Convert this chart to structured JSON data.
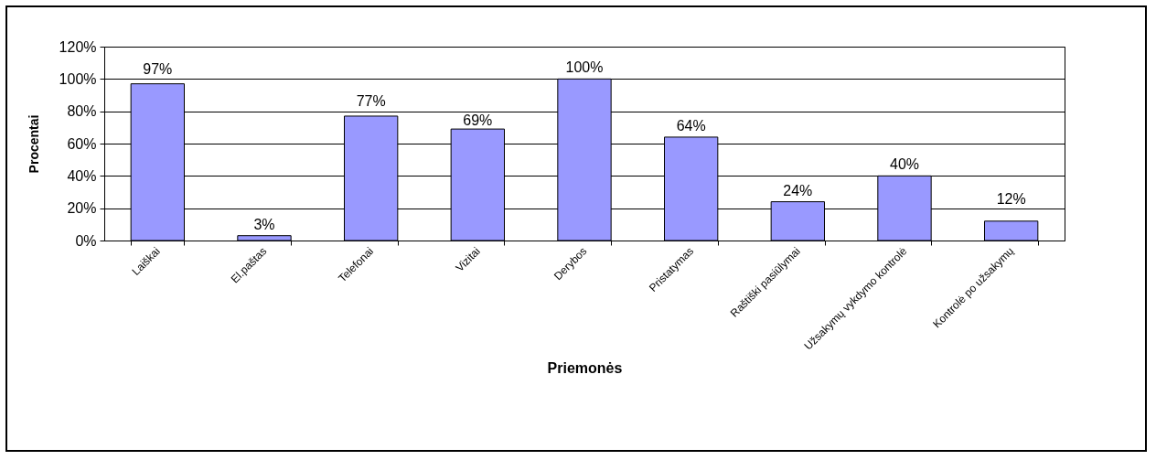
{
  "chart_data": {
    "type": "bar",
    "xlabel": "Priemonės",
    "ylabel": "Procentai",
    "categories": [
      "Laiškai",
      "El.paštas",
      "Telefonai",
      "Vizitai",
      "Derybos",
      "Pristatymas",
      "Raštiški pasiūlymai",
      "Užsakymų vykdymo kontrolė",
      "Kontrolė po užsakymų"
    ],
    "values": [
      97,
      3,
      77,
      69,
      100,
      64,
      24,
      40,
      12
    ],
    "value_labels": [
      "97%",
      "3%",
      "77%",
      "69%",
      "100%",
      "64%",
      "24%",
      "40%",
      "12%"
    ],
    "color": "#9999ff",
    "ylim": [
      0,
      120
    ],
    "yticks": [
      {
        "value": 0,
        "label": "0%"
      },
      {
        "value": 20,
        "label": "20%"
      },
      {
        "value": 40,
        "label": "40%"
      },
      {
        "value": 60,
        "label": "60%"
      },
      {
        "value": 80,
        "label": "80%"
      },
      {
        "value": 100,
        "label": "100%"
      },
      {
        "value": 120,
        "label": "120%"
      }
    ],
    "grid": "y"
  }
}
